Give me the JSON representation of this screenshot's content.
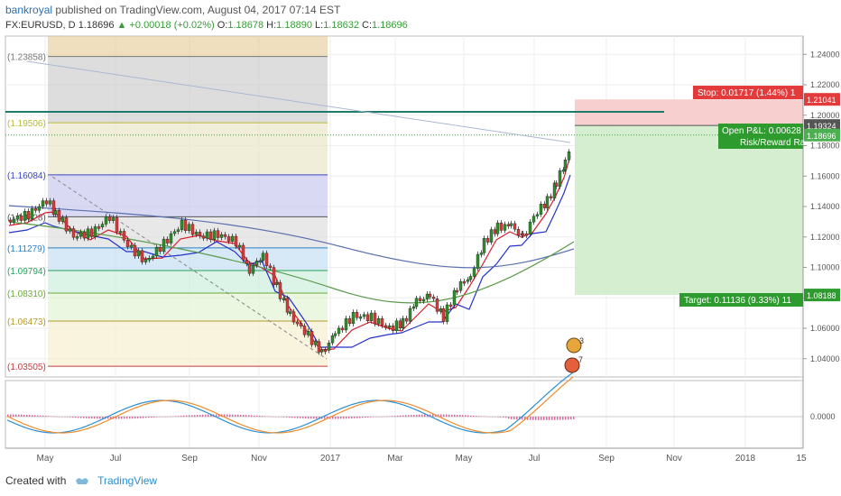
{
  "header": {
    "author": "bankroyal",
    "published": "published on TradingView.com, August 04, 2017 07:14 EST",
    "symbol": "FX:EURUSD, D",
    "last": "1.18696",
    "change": "+0.00018 (+0.02%)",
    "o_label": "O:",
    "o": "1.18678",
    "h_label": "H:",
    "h": "1.18890",
    "l_label": "L:",
    "l": "1.18632",
    "c_label": "C:",
    "c": "1.18696"
  },
  "footer": {
    "created_with": "Created with",
    "brand": "TradingView"
  },
  "chart_data": {
    "type": "candlestick",
    "x_ticks": [
      "May",
      "Jul",
      "Sep",
      "Nov",
      "2017",
      "Mar",
      "May",
      "Jul",
      "Sep",
      "Nov",
      "2018",
      "15"
    ],
    "y_ticks": [
      "1.24000",
      "1.22000",
      "1.20000",
      "1.18000",
      "1.16000",
      "1.14000",
      "1.12000",
      "1.10000",
      "1.08000",
      "1.06000",
      "1.04000"
    ],
    "y_range": [
      1.028,
      1.252
    ],
    "fib_levels": [
      "1.23858",
      "1.19506",
      "1.16084",
      "1.13328",
      "1.11279",
      "1.09794",
      "1.08310",
      "1.06473",
      "1.03505"
    ],
    "price_line": 1.18696,
    "price_labels": {
      "stop": "1.21041",
      "entry": "1.19324",
      "last": "1.18696",
      "target": "1.08188"
    },
    "position": {
      "stop_text": "Stop: 0.01717 (1.44%) 1",
      "pnl_text": "Open P&L: 0.00628",
      "rr_text": "Risk/Reward Ra",
      "target_text": "Target: 0.11136 (9.33%) 11"
    },
    "oscillator_zero": "0.0000",
    "colors": {
      "up": "#2f8f2f",
      "down": "#d93b3b",
      "ema_fast": "#d81b2a",
      "ema_mid": "#2533c8",
      "ma_slow": "#5a6fae",
      "ma_long": "#5a9a4a",
      "trendline": "#1f7a6e",
      "stop_zone": "#f6c7c7",
      "target_zone": "#cdebc7"
    }
  }
}
